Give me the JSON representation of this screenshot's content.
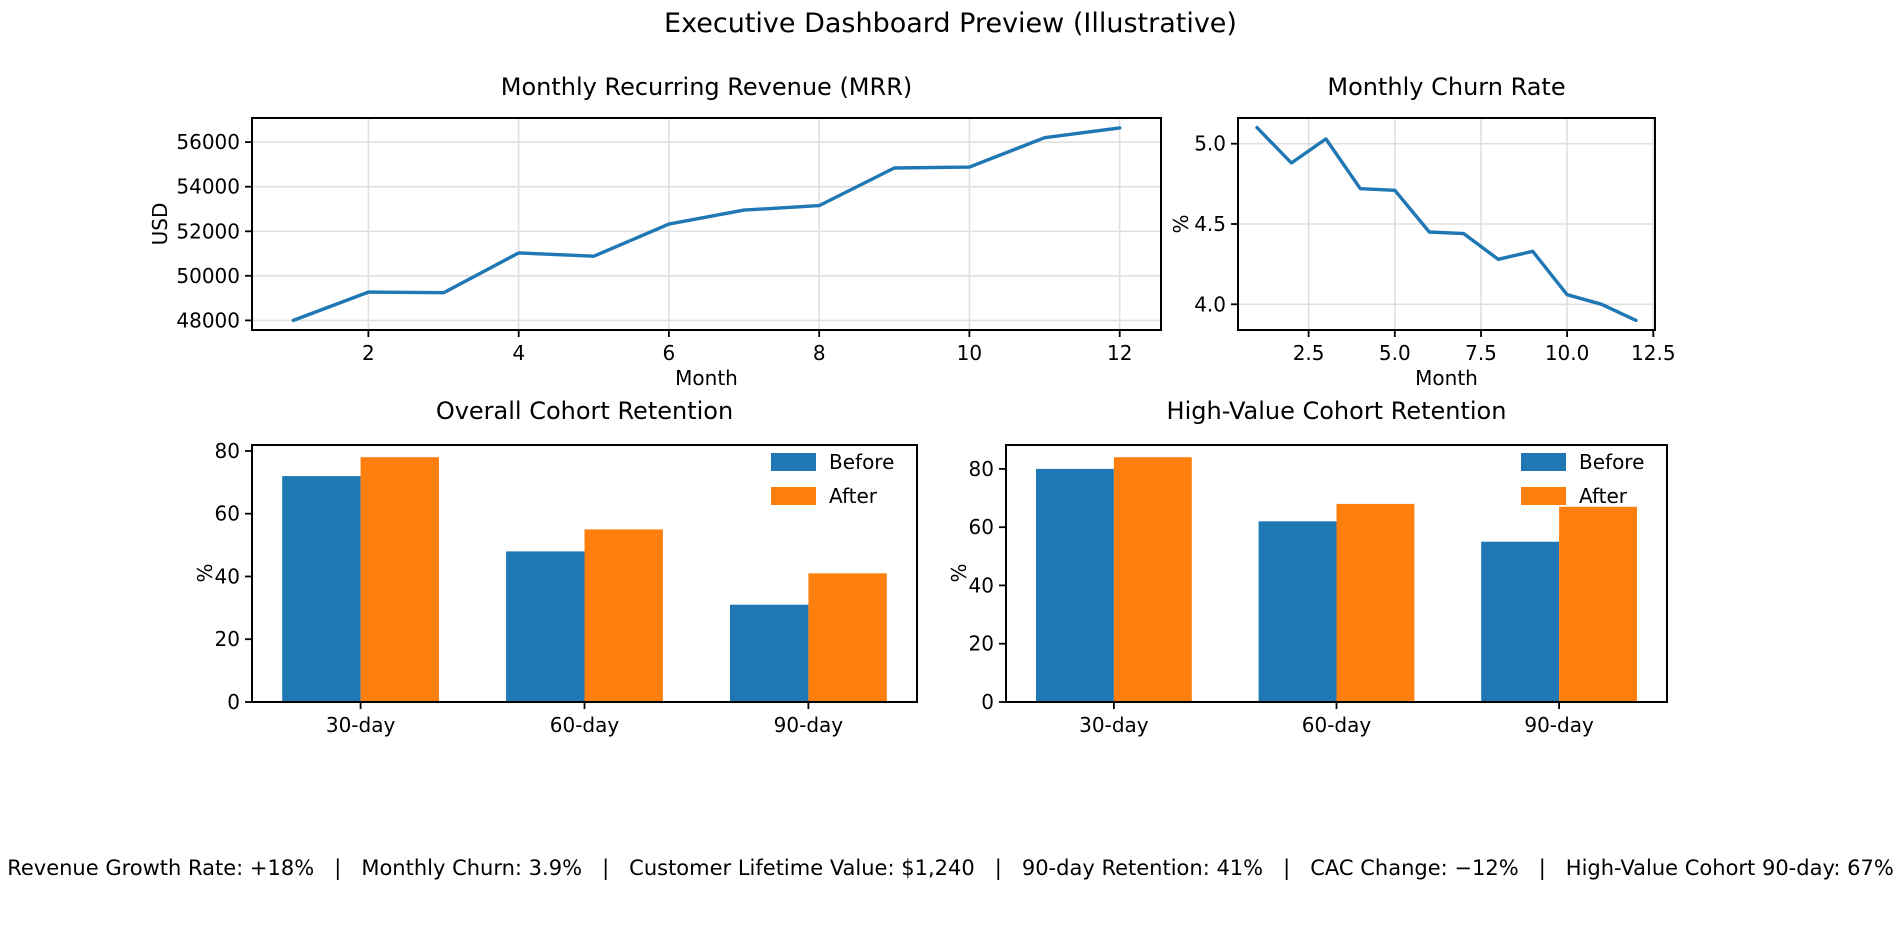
{
  "figure_title": "Executive Dashboard Preview (Illustrative)",
  "colors": {
    "blue": "#1f77b4",
    "orange": "#ff7f0e",
    "grid": "#e0e0e0",
    "axis": "#000000",
    "background": "#ffffff"
  },
  "chart_data": [
    {
      "id": "mrr",
      "type": "line",
      "title": "Monthly Recurring Revenue (MRR)",
      "xlabel": "Month",
      "ylabel": "USD",
      "x": [
        1,
        2,
        3,
        4,
        5,
        6,
        7,
        8,
        9,
        10,
        11,
        12
      ],
      "y": [
        48000,
        49270,
        49240,
        51030,
        50880,
        52320,
        52950,
        53150,
        54840,
        54880,
        56200,
        56640
      ],
      "xlim": [
        0.45,
        12.55
      ],
      "ylim": [
        47568,
        57083
      ],
      "xticks": [
        2,
        4,
        6,
        8,
        10,
        12
      ],
      "xtick_labels": [
        "2",
        "4",
        "6",
        "8",
        "10",
        "12"
      ],
      "yticks": [
        48000,
        50000,
        52000,
        54000,
        56000
      ],
      "ytick_labels": [
        "48000",
        "50000",
        "52000",
        "54000",
        "56000"
      ],
      "grid": true,
      "line_color": "#1f77b4"
    },
    {
      "id": "churn",
      "type": "line",
      "title": "Monthly Churn Rate",
      "xlabel": "Month",
      "ylabel": "%",
      "x": [
        1,
        2,
        3,
        4,
        5,
        6,
        7,
        8,
        9,
        10,
        11,
        12
      ],
      "y": [
        5.1,
        4.88,
        5.03,
        4.72,
        4.71,
        4.45,
        4.44,
        4.28,
        4.33,
        4.06,
        4.0,
        3.9
      ],
      "xlim": [
        0.45,
        12.55
      ],
      "ylim": [
        3.84,
        5.16
      ],
      "xticks": [
        2.5,
        5,
        7.5,
        10,
        12.5
      ],
      "xtick_labels": [
        "2.5",
        "5.0",
        "7.5",
        "10.0",
        "12.5"
      ],
      "yticks": [
        4,
        4.5,
        5
      ],
      "ytick_labels": [
        "4.0",
        "4.5",
        "5.0"
      ],
      "grid": true,
      "line_color": "#1f77b4"
    },
    {
      "id": "overall-retention",
      "type": "bar",
      "title": "Overall Cohort Retention",
      "xlabel": "",
      "ylabel": "%",
      "categories": [
        "30-day",
        "60-day",
        "90-day"
      ],
      "series": [
        {
          "name": "Before",
          "values": [
            72,
            48,
            31
          ],
          "color": "#1f77b4"
        },
        {
          "name": "After",
          "values": [
            78,
            55,
            41
          ],
          "color": "#ff7f0e"
        }
      ],
      "bar_width": 0.35,
      "xlim": [
        -0.485,
        2.485
      ],
      "ylim": [
        0,
        81.9
      ],
      "yticks": [
        0,
        20,
        40,
        60,
        80
      ],
      "ytick_labels": [
        "0",
        "20",
        "40",
        "60",
        "80"
      ],
      "grid": false,
      "legend": {
        "labels": [
          "Before",
          "After"
        ],
        "position": "upper right"
      }
    },
    {
      "id": "high-value-retention",
      "type": "bar",
      "title": "High-Value Cohort Retention",
      "xlabel": "",
      "ylabel": "%",
      "categories": [
        "30-day",
        "60-day",
        "90-day"
      ],
      "series": [
        {
          "name": "Before",
          "values": [
            80,
            62,
            55
          ],
          "color": "#1f77b4"
        },
        {
          "name": "After",
          "values": [
            84,
            68,
            67
          ],
          "color": "#ff7f0e"
        }
      ],
      "bar_width": 0.35,
      "xlim": [
        -0.485,
        2.485
      ],
      "ylim": [
        0,
        88.2
      ],
      "yticks": [
        0,
        20,
        40,
        60,
        80
      ],
      "ytick_labels": [
        "0",
        "20",
        "40",
        "60",
        "80"
      ],
      "grid": false,
      "legend": {
        "labels": [
          "Before",
          "After"
        ],
        "position": "upper right"
      }
    }
  ],
  "footer": {
    "items": [
      "Revenue Growth Rate: +18%",
      "Monthly Churn: 3.9%",
      "Customer Lifetime Value: $1,240",
      "90-day Retention: 41%",
      "CAC Change: −12%",
      "High-Value Cohort 90-day: 67%"
    ],
    "separator": "|",
    "text": "Revenue Growth Rate: +18%   |   Monthly Churn: 3.9%   |   Customer Lifetime Value: $1,240   |   90-day Retention: 41%   |   CAC Change: −12%   |   High-Value Cohort 90-day: 67%"
  }
}
